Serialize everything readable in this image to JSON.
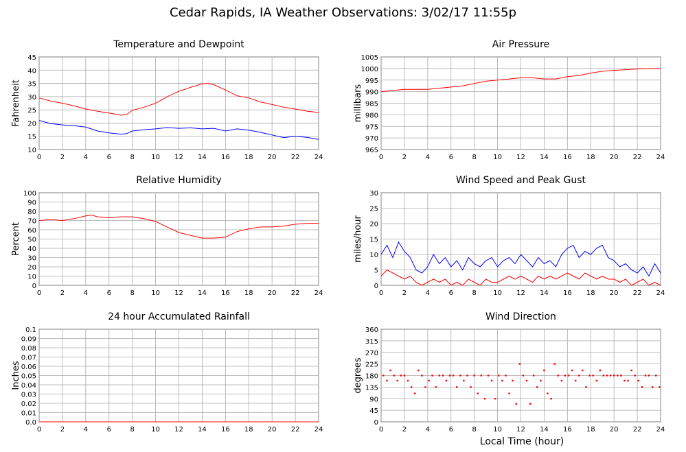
{
  "page": {
    "title": "Cedar Rapids, IA Weather Observations: 3/02/17 11:55p",
    "xlabel": "Local Time (hour)"
  },
  "chart_data": [
    {
      "id": "temp",
      "type": "line",
      "title": "Temperature and Dewpoint",
      "ylabel": "Fahrenheit",
      "xlim": [
        0,
        24
      ],
      "ylim": [
        10,
        45
      ],
      "yticks": [
        10,
        15,
        20,
        25,
        30,
        35,
        40,
        45
      ],
      "xticks": [
        0,
        2,
        4,
        6,
        8,
        10,
        12,
        14,
        16,
        18,
        20,
        22,
        24
      ],
      "grid": true,
      "series": [
        {
          "color": "#ff0000",
          "x": [
            0,
            1,
            2,
            3,
            4,
            5,
            6,
            7,
            7.5,
            8,
            9,
            10,
            11,
            12,
            13,
            14,
            14.5,
            15,
            16,
            17,
            18,
            19,
            20,
            21,
            22,
            23,
            24
          ],
          "y": [
            29.5,
            28.3,
            27.5,
            26.5,
            25.3,
            24.5,
            23.8,
            23,
            23.2,
            24.8,
            26,
            27.5,
            30,
            32,
            33.5,
            34.8,
            35,
            34.5,
            32.5,
            30.3,
            29.5,
            28,
            27,
            26,
            25.3,
            24.5,
            24
          ]
        },
        {
          "color": "#0000ff",
          "x": [
            0,
            1,
            2,
            3,
            4,
            5,
            6,
            7,
            7.5,
            8,
            9,
            10,
            11,
            12,
            13,
            14,
            15,
            16,
            17,
            18,
            19,
            20,
            21,
            22,
            23,
            24
          ],
          "y": [
            21,
            19.8,
            19.3,
            19,
            18.5,
            17,
            16.3,
            15.8,
            16,
            17,
            17.5,
            17.8,
            18.3,
            18,
            18.2,
            17.8,
            18,
            17,
            17.8,
            17.3,
            16.5,
            15.5,
            14.5,
            15,
            14.6,
            13.8
          ]
        }
      ]
    },
    {
      "id": "pressure",
      "type": "line",
      "title": "Air Pressure",
      "ylabel": "millibars",
      "xlim": [
        0,
        24
      ],
      "ylim": [
        965,
        1005
      ],
      "yticks": [
        965,
        970,
        975,
        980,
        985,
        990,
        995,
        1000,
        1005
      ],
      "xticks": [
        0,
        2,
        4,
        6,
        8,
        10,
        12,
        14,
        16,
        18,
        20,
        22,
        24
      ],
      "grid": true,
      "series": [
        {
          "color": "#ff0000",
          "x": [
            0,
            1,
            2,
            3,
            4,
            5,
            6,
            7,
            8,
            9,
            10,
            11,
            12,
            13,
            14,
            15,
            16,
            17,
            18,
            19,
            20,
            21,
            22,
            23,
            24
          ],
          "y": [
            990,
            990.5,
            991,
            991,
            991,
            991.5,
            992,
            992.5,
            993.5,
            994.5,
            995,
            995.5,
            996,
            996,
            995.5,
            995.5,
            996.5,
            997,
            998,
            998.8,
            999.2,
            999.5,
            999.8,
            1000,
            1000
          ]
        }
      ]
    },
    {
      "id": "rh",
      "type": "line",
      "title": "Relative Humidity",
      "ylabel": "Percent",
      "xlim": [
        0,
        24
      ],
      "ylim": [
        0,
        100
      ],
      "yticks": [
        0,
        10,
        20,
        30,
        40,
        50,
        60,
        70,
        80,
        90,
        100
      ],
      "xticks": [
        0,
        2,
        4,
        6,
        8,
        10,
        12,
        14,
        16,
        18,
        20,
        22,
        24
      ],
      "grid": true,
      "series": [
        {
          "color": "#ff0000",
          "x": [
            0,
            1,
            2,
            3,
            4,
            4.5,
            5,
            6,
            7,
            8,
            9,
            10,
            11,
            12,
            13,
            14,
            15,
            16,
            17,
            18,
            19,
            20,
            21,
            22,
            23,
            24
          ],
          "y": [
            70,
            71,
            70,
            72,
            75,
            76,
            74,
            73,
            74,
            74,
            72,
            69,
            63,
            57,
            54,
            51,
            51,
            52,
            58,
            61,
            63,
            63,
            64,
            66,
            67,
            67
          ]
        }
      ]
    },
    {
      "id": "wind",
      "type": "line",
      "title": "Wind Speed and Peak Gust",
      "ylabel": "miles/hour",
      "xlim": [
        0,
        24
      ],
      "ylim": [
        0,
        30
      ],
      "yticks": [
        0,
        5,
        10,
        15,
        20,
        25,
        30
      ],
      "xticks": [
        0,
        2,
        4,
        6,
        8,
        10,
        12,
        14,
        16,
        18,
        20,
        22,
        24
      ],
      "grid": true,
      "series": [
        {
          "color": "#0000ff",
          "x": [
            0,
            0.5,
            1,
            1.5,
            2,
            2.5,
            3,
            3.5,
            4,
            4.5,
            5,
            5.5,
            6,
            6.5,
            7,
            7.5,
            8,
            8.5,
            9,
            9.5,
            10,
            10.5,
            11,
            11.5,
            12,
            12.5,
            13,
            13.5,
            14,
            14.5,
            15,
            15.5,
            16,
            16.5,
            17,
            17.5,
            18,
            18.5,
            19,
            19.5,
            20,
            20.5,
            21,
            21.5,
            22,
            22.5,
            23,
            23.5,
            24
          ],
          "y": [
            10,
            13,
            9,
            14,
            11,
            9,
            5,
            4,
            6,
            10,
            7,
            9,
            6,
            8,
            5,
            9,
            7,
            6,
            8,
            9,
            6,
            8,
            9,
            7,
            10,
            8,
            6,
            9,
            7,
            8,
            6,
            10,
            12,
            13,
            9,
            11,
            10,
            12,
            13,
            9,
            8,
            6,
            7,
            5,
            4,
            6,
            3,
            7,
            4
          ]
        },
        {
          "color": "#ff0000",
          "x": [
            0,
            0.5,
            1,
            1.5,
            2,
            2.5,
            3,
            3.5,
            4,
            4.5,
            5,
            5.5,
            6,
            6.5,
            7,
            7.5,
            8,
            8.5,
            9,
            9.5,
            10,
            10.5,
            11,
            11.5,
            12,
            12.5,
            13,
            13.5,
            14,
            14.5,
            15,
            15.5,
            16,
            16.5,
            17,
            17.5,
            18,
            18.5,
            19,
            19.5,
            20,
            20.5,
            21,
            21.5,
            22,
            22.5,
            23,
            23.5,
            24
          ],
          "y": [
            3,
            5,
            4,
            3,
            2,
            3,
            1,
            0,
            1,
            2,
            1,
            2,
            0,
            1,
            0,
            2,
            1,
            0,
            2,
            1,
            1,
            2,
            3,
            2,
            3,
            2,
            1,
            3,
            2,
            3,
            2,
            3,
            4,
            3,
            2,
            4,
            3,
            2,
            3,
            2,
            2,
            1,
            2,
            0,
            1,
            2,
            0,
            1,
            0
          ]
        }
      ]
    },
    {
      "id": "rain",
      "type": "line",
      "title": "24 hour Accumulated Rainfall",
      "ylabel": "Inches",
      "xlim": [
        0,
        24
      ],
      "ylim": [
        0,
        0.1
      ],
      "yticks": [
        "0.0",
        "0.01",
        "0.02",
        "0.03",
        "0.04",
        "0.05",
        "0.06",
        "0.07",
        "0.08",
        "0.09",
        "0.1"
      ],
      "xticks": [
        0,
        2,
        4,
        6,
        8,
        10,
        12,
        14,
        16,
        18,
        20,
        22,
        24
      ],
      "grid": true,
      "series": [
        {
          "color": "#ff0000",
          "x": [
            0,
            24
          ],
          "y": [
            0,
            0
          ]
        }
      ]
    },
    {
      "id": "dir",
      "type": "scatter",
      "title": "Wind Direction",
      "ylabel": "degrees",
      "xlim": [
        0,
        24
      ],
      "ylim": [
        0,
        360
      ],
      "yticks": [
        0,
        45,
        90,
        135,
        180,
        225,
        270,
        315,
        360
      ],
      "xticks": [
        0,
        2,
        4,
        6,
        8,
        10,
        12,
        14,
        16,
        18,
        20,
        22,
        24
      ],
      "grid": true,
      "series": [
        {
          "color": "#ff0000",
          "x": [
            0.2,
            0.5,
            0.8,
            1.1,
            1.4,
            1.7,
            2.0,
            2.3,
            2.6,
            2.9,
            3.2,
            3.5,
            3.8,
            4.1,
            4.4,
            4.7,
            5.0,
            5.3,
            5.6,
            5.9,
            6.2,
            6.5,
            6.8,
            7.1,
            7.4,
            7.7,
            8.0,
            8.3,
            8.6,
            8.9,
            9.2,
            9.5,
            9.8,
            10.1,
            10.4,
            10.7,
            11.0,
            11.3,
            11.6,
            11.9,
            12.2,
            12.5,
            12.8,
            13.1,
            13.4,
            13.7,
            14.0,
            14.3,
            14.6,
            14.9,
            15.2,
            15.5,
            15.8,
            16.1,
            16.4,
            16.7,
            17.0,
            17.3,
            17.6,
            17.9,
            18.2,
            18.5,
            18.8,
            19.1,
            19.4,
            19.7,
            20.0,
            20.3,
            20.6,
            20.9,
            21.2,
            21.5,
            21.8,
            22.1,
            22.4,
            22.7,
            23.0,
            23.3,
            23.6,
            23.9
          ],
          "y": [
            180,
            160,
            200,
            180,
            160,
            180,
            180,
            160,
            135,
            110,
            200,
            180,
            135,
            160,
            180,
            135,
            180,
            180,
            160,
            180,
            180,
            135,
            180,
            160,
            180,
            135,
            180,
            110,
            180,
            90,
            180,
            160,
            90,
            180,
            160,
            180,
            110,
            160,
            70,
            225,
            180,
            160,
            70,
            180,
            135,
            160,
            200,
            110,
            90,
            225,
            180,
            160,
            180,
            180,
            200,
            160,
            180,
            200,
            135,
            180,
            180,
            160,
            200,
            180,
            180,
            180,
            180,
            180,
            180,
            160,
            160,
            200,
            180,
            160,
            135,
            180,
            180,
            135,
            180,
            135
          ]
        }
      ]
    }
  ]
}
